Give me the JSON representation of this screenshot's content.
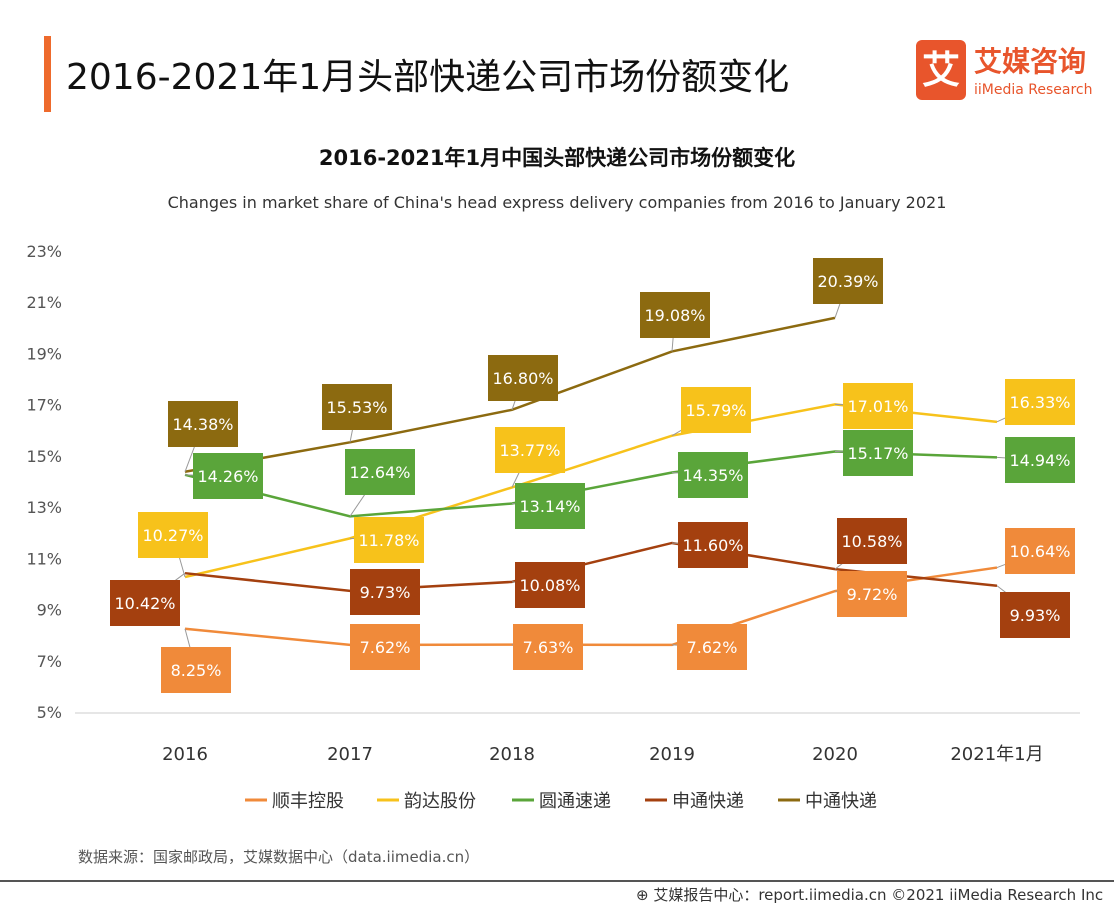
{
  "header": {
    "title": "2016-2021年1月头部快递公司市场份额变化",
    "logo_cn": "艾媒咨询",
    "logo_en": "iiMedia Research",
    "logo_mark": "艾"
  },
  "chart_data": {
    "type": "line",
    "title": "2016-2021年1月中国头部快递公司市场份额变化",
    "subtitle": "Changes in market share of China's head express delivery companies from 2016 to January 2021",
    "categories": [
      "2016",
      "2017",
      "2018",
      "2019",
      "2020",
      "2021年1月"
    ],
    "yticks": [
      "5%",
      "7%",
      "9%",
      "11%",
      "13%",
      "15%",
      "17%",
      "19%",
      "21%",
      "23%"
    ],
    "ylim": [
      5,
      23
    ],
    "unit": "%",
    "grid": false,
    "legend_position": "bottom",
    "series": [
      {
        "name": "顺丰控股",
        "color": "#f08a3a",
        "values": [
          8.25,
          7.62,
          7.63,
          7.62,
          9.72,
          10.64
        ]
      },
      {
        "name": "韵达股份",
        "color": "#f7c21b",
        "values": [
          10.27,
          11.78,
          13.77,
          15.79,
          17.01,
          16.33
        ]
      },
      {
        "name": "圆通速递",
        "color": "#5aa53a",
        "values": [
          14.26,
          12.64,
          13.14,
          14.35,
          15.17,
          14.94
        ]
      },
      {
        "name": "申通快递",
        "color": "#a4400f",
        "values": [
          10.42,
          9.73,
          10.08,
          11.6,
          10.58,
          9.93
        ]
      },
      {
        "name": "中通快递",
        "color": "#8c6a10",
        "values": [
          14.38,
          15.53,
          16.8,
          19.08,
          20.39,
          null
        ]
      }
    ]
  },
  "footer": {
    "source": "数据来源：国家邮政局，艾媒数据中心（data.iimedia.cn）",
    "credit": "艾媒报告中心：report.iimedia.cn  ©2021  iiMedia Research Inc"
  }
}
